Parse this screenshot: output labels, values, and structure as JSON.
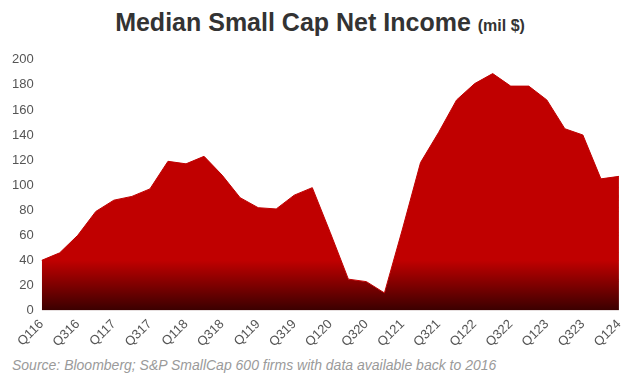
{
  "chart_data": {
    "type": "area",
    "title": "Median Small Cap Net Income (mil $)",
    "source": "Source: Bloomberg; S&P SmallCap 600 firms with data available back to 2016",
    "categories": [
      "Q116",
      null,
      "Q316",
      null,
      "Q117",
      null,
      "Q317",
      null,
      "Q118",
      null,
      "Q318",
      null,
      "Q119",
      null,
      "Q319",
      null,
      "Q120",
      null,
      "Q320",
      null,
      "Q121",
      null,
      "Q321",
      null,
      "Q122",
      null,
      "Q322",
      null,
      "Q123",
      null,
      "Q323",
      null,
      "Q124"
    ],
    "values": [
      40,
      46,
      60,
      79,
      88,
      91,
      97,
      119,
      117,
      123,
      108,
      90,
      82,
      81,
      92,
      98,
      62,
      25,
      23,
      14,
      65,
      118,
      142,
      168,
      181,
      189,
      179,
      179,
      168,
      145,
      140,
      105,
      107
    ],
    "color": "#c00000",
    "ylim": [
      0,
      200
    ],
    "yticks": [
      0,
      20,
      40,
      60,
      80,
      100,
      120,
      140,
      160,
      180,
      200
    ],
    "grid": false
  }
}
